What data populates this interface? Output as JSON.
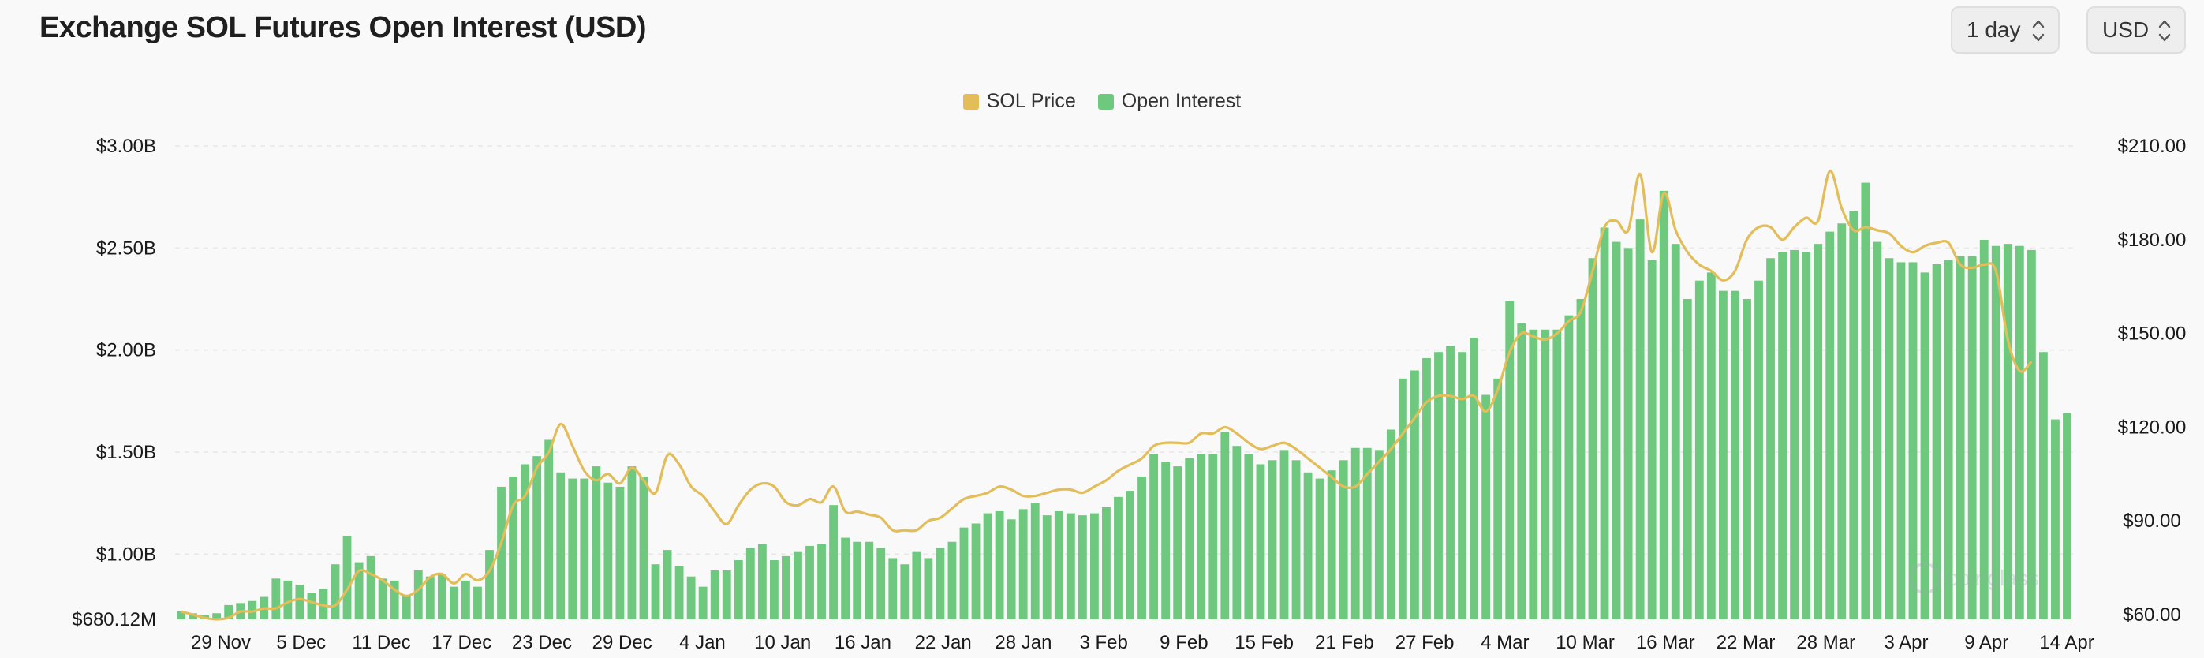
{
  "header": {
    "title": "Exchange SOL Futures Open Interest (USD)",
    "interval": "1 day",
    "currency": "USD"
  },
  "colors": {
    "price": "#e3bd5a",
    "open_interest": "#6ec97f",
    "grid": "#e8e8e8"
  },
  "icons": {
    "select_chevron": "chevron-up-down-icon",
    "watermark": "coinglass-logo"
  },
  "chart_data": {
    "type": "bar",
    "title": "Exchange SOL Futures Open Interest (USD)",
    "legend": [
      {
        "name": "SOL Price",
        "color": "#e3bd5a"
      },
      {
        "name": "Open Interest",
        "color": "#6ec97f"
      }
    ],
    "legend_position": "top-center",
    "x_tick_labels": [
      "29 Nov",
      "5 Dec",
      "11 Dec",
      "17 Dec",
      "23 Dec",
      "29 Dec",
      "4 Jan",
      "10 Jan",
      "16 Jan",
      "22 Jan",
      "28 Jan",
      "3 Feb",
      "9 Feb",
      "15 Feb",
      "21 Feb",
      "27 Feb",
      "4 Mar",
      "10 Mar",
      "16 Mar",
      "22 Mar",
      "28 Mar",
      "3 Apr",
      "9 Apr",
      "14 Apr"
    ],
    "left_axis": {
      "name": "Open Interest",
      "range": [
        680120000,
        3000000000
      ],
      "tick_labels": [
        "$680.12M",
        "$1.00B",
        "$1.50B",
        "$2.00B",
        "$2.50B",
        "$3.00B"
      ],
      "tick_values": [
        680120000,
        1000000000,
        1500000000,
        2000000000,
        2500000000,
        3000000000
      ]
    },
    "right_axis": {
      "name": "SOL Price",
      "range": [
        58.5,
        210
      ],
      "tick_labels": [
        "$60.00",
        "$90.00",
        "$120.00",
        "$150.00",
        "$180.00",
        "$210.00"
      ],
      "tick_values": [
        60,
        90,
        120,
        150,
        180,
        210
      ]
    },
    "grid": true,
    "series": [
      {
        "name": "Open Interest",
        "type": "bar",
        "axis": "left",
        "values": [
          0.72,
          0.71,
          0.7,
          0.71,
          0.75,
          0.76,
          0.77,
          0.79,
          0.88,
          0.87,
          0.85,
          0.81,
          0.83,
          0.95,
          1.09,
          0.96,
          0.99,
          0.88,
          0.87,
          0.8,
          0.92,
          0.89,
          0.9,
          0.84,
          0.87,
          0.84,
          1.02,
          1.33,
          1.38,
          1.44,
          1.48,
          1.56,
          1.4,
          1.37,
          1.37,
          1.43,
          1.35,
          1.33,
          1.43,
          1.38,
          0.95,
          1.02,
          0.94,
          0.89,
          0.84,
          0.92,
          0.92,
          0.97,
          1.03,
          1.05,
          0.97,
          0.99,
          1.01,
          1.04,
          1.05,
          1.24,
          1.08,
          1.06,
          1.06,
          1.03,
          0.98,
          0.95,
          1.01,
          0.98,
          1.03,
          1.06,
          1.13,
          1.15,
          1.2,
          1.21,
          1.17,
          1.22,
          1.25,
          1.19,
          1.21,
          1.2,
          1.19,
          1.2,
          1.23,
          1.28,
          1.31,
          1.38,
          1.49,
          1.45,
          1.43,
          1.47,
          1.49,
          1.49,
          1.6,
          1.53,
          1.49,
          1.44,
          1.46,
          1.51,
          1.46,
          1.4,
          1.37,
          1.41,
          1.46,
          1.52,
          1.52,
          1.51,
          1.61,
          1.86,
          1.9,
          1.96,
          1.99,
          2.02,
          1.99,
          2.06,
          1.78,
          1.86,
          2.24,
          2.13,
          2.1,
          2.1,
          2.1,
          2.17,
          2.25,
          2.45,
          2.6,
          2.53,
          2.5,
          2.64,
          2.44,
          2.78,
          2.52,
          2.25,
          2.34,
          2.38,
          2.29,
          2.29,
          2.25,
          2.34,
          2.45,
          2.48,
          2.49,
          2.48,
          2.52,
          2.58,
          2.62,
          2.68,
          2.82,
          2.53,
          2.45,
          2.43,
          2.43,
          2.38,
          2.42,
          2.44,
          2.46,
          2.46,
          2.54,
          2.51,
          2.52,
          2.51,
          2.49,
          1.99,
          1.66,
          1.69
        ]
      },
      {
        "name": "SOL Price",
        "type": "line",
        "axis": "right",
        "values": [
          61,
          60,
          59,
          58.5,
          59,
          61,
          61,
          62,
          62,
          64,
          65,
          64,
          63,
          63,
          68,
          74,
          73,
          71,
          68,
          66,
          68,
          72,
          73,
          70,
          73,
          71,
          74,
          83,
          95,
          98,
          107,
          112,
          121,
          114,
          106,
          103,
          105,
          102,
          107,
          103,
          99,
          111,
          108,
          101,
          98,
          93,
          89,
          95,
          100,
          102,
          101,
          96,
          95,
          97,
          96,
          101,
          93,
          93,
          92,
          91,
          87,
          87,
          87,
          90,
          91,
          94,
          97,
          98,
          99,
          101,
          100,
          98,
          98,
          99,
          100,
          100,
          99,
          101,
          103,
          106,
          108,
          110,
          114,
          115,
          115,
          115,
          118,
          118,
          120,
          118,
          115,
          113,
          114,
          115,
          113,
          110,
          107,
          104,
          101,
          101,
          105,
          109,
          113,
          118,
          123,
          128,
          130,
          130,
          129,
          130,
          125,
          132,
          144,
          150,
          149,
          148,
          150,
          154,
          157,
          170,
          184,
          186,
          183,
          201,
          176,
          195,
          183,
          176,
          172,
          170,
          167,
          170,
          180,
          184,
          184,
          180,
          184,
          187,
          186,
          202,
          190,
          183,
          184,
          183,
          182,
          178,
          176,
          178,
          179,
          179,
          172,
          171,
          172,
          170,
          148,
          138,
          141
        ]
      }
    ]
  },
  "watermark_text": "coinglass"
}
